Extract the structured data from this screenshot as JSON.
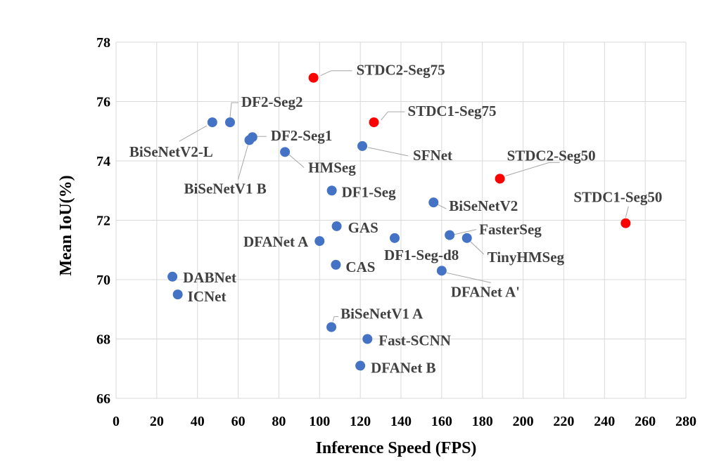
{
  "chart_data": {
    "type": "scatter",
    "xlabel": "Inference Speed (FPS)",
    "ylabel": "Mean IoU(%)",
    "xlim": [
      0,
      280
    ],
    "ylim": [
      66,
      78
    ],
    "xticks": [
      0,
      20,
      40,
      60,
      80,
      100,
      120,
      140,
      160,
      180,
      200,
      220,
      240,
      260,
      280
    ],
    "yticks": [
      66,
      68,
      70,
      72,
      74,
      76,
      78
    ],
    "grid": true,
    "colors": {
      "ours": "#ff0000",
      "others": "#4472c4"
    },
    "points": [
      {
        "name": "STDC2-Seg75",
        "x": 97,
        "y": 76.8,
        "group": "ours"
      },
      {
        "name": "STDC1-Seg75",
        "x": 126.7,
        "y": 75.3,
        "group": "ours"
      },
      {
        "name": "STDC2-Seg50",
        "x": 188.6,
        "y": 73.4,
        "group": "ours"
      },
      {
        "name": "STDC1-Seg50",
        "x": 250.4,
        "y": 71.9,
        "group": "ours"
      },
      {
        "name": "DF2-Seg2",
        "x": 56,
        "y": 75.3,
        "group": "others"
      },
      {
        "name": "BiSeNetV2-L",
        "x": 47.3,
        "y": 75.3,
        "group": "others"
      },
      {
        "name": "DF2-Seg1",
        "x": 67,
        "y": 74.8,
        "group": "others"
      },
      {
        "name": "BiSeNetV1 B",
        "x": 65.5,
        "y": 74.7,
        "group": "others"
      },
      {
        "name": "HMSeg",
        "x": 83,
        "y": 74.3,
        "group": "others"
      },
      {
        "name": "SFNet",
        "x": 121,
        "y": 74.5,
        "group": "others"
      },
      {
        "name": "DF1-Seg",
        "x": 106,
        "y": 73.0,
        "group": "others"
      },
      {
        "name": "BiSeNetV2",
        "x": 156,
        "y": 72.6,
        "group": "others"
      },
      {
        "name": "GAS",
        "x": 108.4,
        "y": 71.8,
        "group": "others"
      },
      {
        "name": "DFANet A",
        "x": 100,
        "y": 71.3,
        "group": "others"
      },
      {
        "name": "DF1-Seg-d8",
        "x": 136.9,
        "y": 71.4,
        "group": "others"
      },
      {
        "name": "FasterSeg",
        "x": 163.9,
        "y": 71.5,
        "group": "others"
      },
      {
        "name": "TinyHMSeg",
        "x": 172.4,
        "y": 71.4,
        "group": "others"
      },
      {
        "name": "CAS",
        "x": 108,
        "y": 70.5,
        "group": "others"
      },
      {
        "name": "DFANet A'",
        "x": 160,
        "y": 70.3,
        "group": "others"
      },
      {
        "name": "DABNet",
        "x": 27.7,
        "y": 70.1,
        "group": "others"
      },
      {
        "name": "ICNet",
        "x": 30.3,
        "y": 69.5,
        "group": "others"
      },
      {
        "name": "BiSeNetV1 A",
        "x": 105.8,
        "y": 68.4,
        "group": "others"
      },
      {
        "name": "Fast-SCNN",
        "x": 123.5,
        "y": 68.0,
        "group": "others"
      },
      {
        "name": "DFANet B",
        "x": 120,
        "y": 67.1,
        "group": "others"
      }
    ]
  }
}
